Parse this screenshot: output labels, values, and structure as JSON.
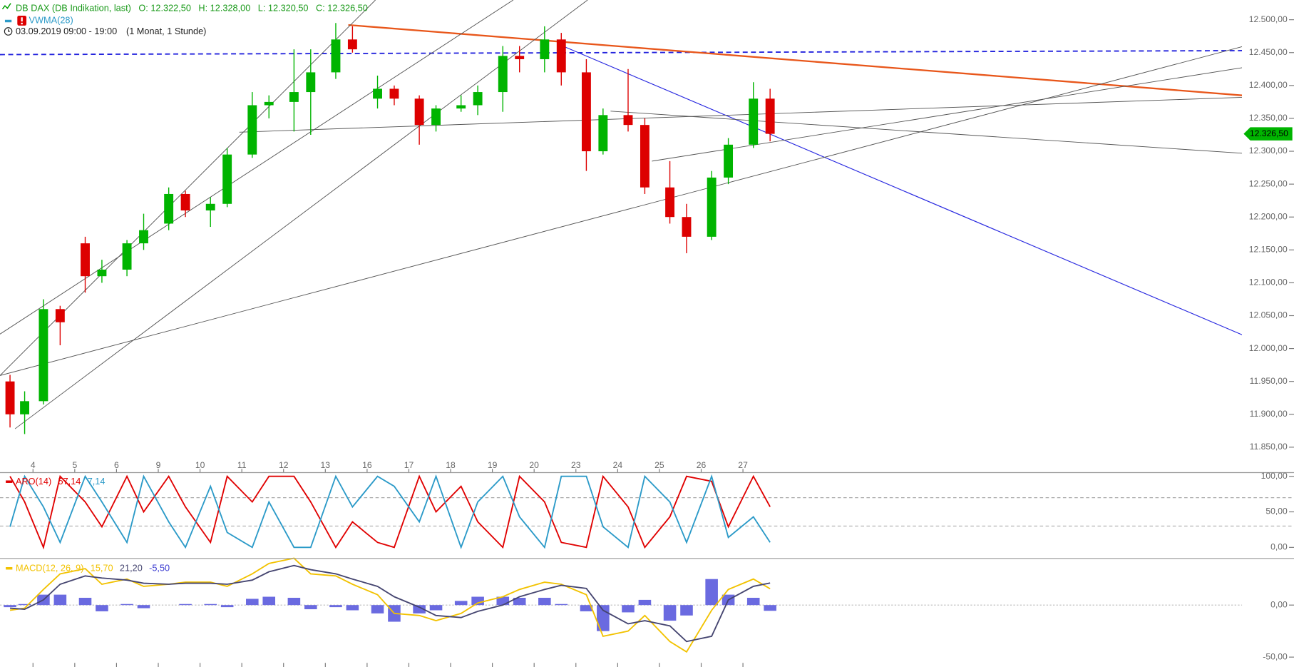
{
  "chart_data": [
    {
      "type": "candlestick",
      "title": "DB DAX (DB Indikation, last)",
      "ohlc_labels": [
        "O: 12.322,50",
        "H: 12.328,00",
        "L: 12.320,50",
        "C: 12.326,50"
      ],
      "indicator": "VWMA(28)",
      "period": "03.09.2019 09:00 - 19:00",
      "interval": "(1 Monat, 1 Stunde)",
      "last_price": {
        "value": 12326.5,
        "label": "12.326,50"
      },
      "up_color": "#00b400",
      "down_color": "#dd0000",
      "x": [
        -0.55,
        -0.2,
        0.25,
        0.65,
        1.25,
        1.65,
        2.25,
        2.65,
        3.25,
        3.65,
        4.25,
        4.65,
        5.25,
        5.65,
        6.25,
        6.65,
        7.25,
        7.65,
        8.25,
        8.65,
        9.25,
        9.65,
        10.25,
        10.65,
        11.25,
        11.65,
        12.25,
        12.65,
        13.25,
        13.65,
        14.25,
        14.65,
        15.25,
        15.65,
        16.25,
        16.65,
        17.25,
        17.65
      ],
      "open": [
        11950,
        11900,
        11920,
        12060,
        12160,
        12110,
        12120,
        12160,
        12190,
        12235,
        12210,
        12220,
        12295,
        12370,
        12375,
        12390,
        12420,
        12470,
        12380,
        12395,
        12380,
        12340,
        12365,
        12370,
        12390,
        12445,
        12440,
        12470,
        12420,
        12300,
        12355,
        12340,
        12245,
        12200,
        12170,
        12260,
        12310,
        12380
      ],
      "high": [
        11960,
        11935,
        12075,
        12065,
        12170,
        12135,
        12165,
        12205,
        12245,
        12240,
        12230,
        12305,
        12390,
        12385,
        12455,
        12455,
        12495,
        12490,
        12415,
        12400,
        12385,
        12370,
        12385,
        12400,
        12460,
        12460,
        12490,
        12480,
        12440,
        12365,
        12425,
        12350,
        12285,
        12220,
        12270,
        12320,
        12405,
        12395
      ],
      "low": [
        11880,
        11870,
        11915,
        12005,
        12085,
        12100,
        12110,
        12150,
        12180,
        12200,
        12185,
        12215,
        12290,
        12350,
        12330,
        12325,
        12410,
        12450,
        12365,
        12370,
        12310,
        12330,
        12360,
        12355,
        12360,
        12420,
        12420,
        12400,
        12270,
        12295,
        12330,
        12235,
        12190,
        12145,
        12165,
        12250,
        12305,
        12315
      ],
      "close": [
        11900,
        11920,
        12060,
        12040,
        12110,
        12120,
        12160,
        12180,
        12235,
        12210,
        12220,
        12295,
        12370,
        12375,
        12390,
        12420,
        12470,
        12455,
        12395,
        12380,
        12340,
        12365,
        12370,
        12390,
        12445,
        12440,
        12470,
        12420,
        12300,
        12355,
        12340,
        12245,
        12200,
        12170,
        12260,
        12310,
        12380,
        12326.5
      ],
      "xlim": [
        -0.79,
        28.95
      ],
      "xticks": [
        {
          "value": 0,
          "label": "4"
        },
        {
          "value": 1,
          "label": "5"
        },
        {
          "value": 2,
          "label": "6"
        },
        {
          "value": 3,
          "label": "9"
        },
        {
          "value": 4,
          "label": "10"
        },
        {
          "value": 5,
          "label": "11"
        },
        {
          "value": 6,
          "label": "12"
        },
        {
          "value": 7,
          "label": "13"
        },
        {
          "value": 8,
          "label": "16"
        },
        {
          "value": 9,
          "label": "17"
        },
        {
          "value": 10,
          "label": "18"
        },
        {
          "value": 11,
          "label": "19"
        },
        {
          "value": 12,
          "label": "20"
        },
        {
          "value": 13,
          "label": "23"
        },
        {
          "value": 14,
          "label": "24"
        },
        {
          "value": 15,
          "label": "25"
        },
        {
          "value": 16,
          "label": "26"
        },
        {
          "value": 17,
          "label": "27"
        }
      ],
      "ylim": [
        11812,
        12530
      ],
      "yticks": [
        {
          "value": 12500,
          "label": "12.500,00"
        },
        {
          "value": 12450,
          "label": "12.450,00"
        },
        {
          "value": 12400,
          "label": "12.400,00"
        },
        {
          "value": 12350,
          "label": "12.350,00"
        },
        {
          "value": 12300,
          "label": "12.300,00"
        },
        {
          "value": 12250,
          "label": "12.250,00"
        },
        {
          "value": 12200,
          "label": "12.200,00"
        },
        {
          "value": 12150,
          "label": "12.150,00"
        },
        {
          "value": 12100,
          "label": "12.100,00"
        },
        {
          "value": 12050,
          "label": "12.050,00"
        },
        {
          "value": 12000,
          "label": "12.000,00"
        },
        {
          "value": 11950,
          "label": "11.950,00"
        },
        {
          "value": 11900,
          "label": "11.900,00"
        },
        {
          "value": 11850,
          "label": "11.850,00"
        }
      ],
      "trendlines": [
        {
          "color": "#2222dd",
          "dash": true,
          "width": 1.6,
          "x": [
            -0.79,
            28.95
          ],
          "y": [
            12447,
            12453
          ]
        },
        {
          "color": "#e8561a",
          "dash": false,
          "width": 2,
          "x": [
            7.55,
            28.95
          ],
          "y": [
            12492,
            12385
          ]
        },
        {
          "color": "#2a2ae0",
          "dash": false,
          "width": 1,
          "x": [
            12.65,
            28.95
          ],
          "y": [
            12461,
            12021
          ]
        },
        {
          "color": "#555555",
          "dash": false,
          "width": 0.8,
          "x": [
            -0.79,
            28.95
          ],
          "y": [
            11959,
            12459
          ]
        },
        {
          "color": "#555555",
          "dash": false,
          "width": 0.8,
          "x": [
            -0.79,
            11.5
          ],
          "y": [
            12022,
            12530
          ]
        },
        {
          "color": "#555555",
          "dash": false,
          "width": 0.8,
          "x": [
            -0.79,
            8.2
          ],
          "y": [
            11959,
            12530
          ]
        },
        {
          "color": "#555555",
          "dash": false,
          "width": 0.8,
          "x": [
            -0.43,
            13.28
          ],
          "y": [
            11878,
            12530
          ]
        },
        {
          "color": "#555555",
          "dash": false,
          "width": 0.8,
          "x": [
            4.94,
            28.95
          ],
          "y": [
            12329,
            12382
          ]
        },
        {
          "color": "#555555",
          "dash": false,
          "width": 0.8,
          "x": [
            13.83,
            28.95
          ],
          "y": [
            12361,
            12297
          ]
        },
        {
          "color": "#555555",
          "dash": false,
          "width": 0.8,
          "x": [
            14.82,
            28.95
          ],
          "y": [
            12285,
            12427
          ]
        }
      ]
    },
    {
      "type": "line",
      "title": "ARO(14)",
      "series": [
        {
          "name": "Aroon Up",
          "last_label": "57,14",
          "color": "#e00000",
          "values": [
            100,
            64,
            0,
            100,
            64,
            29,
            100,
            50,
            100,
            57,
            7,
            100,
            64,
            100,
            100,
            64,
            0,
            36,
            7,
            0,
            100,
            50,
            86,
            36,
            0,
            100,
            64,
            7,
            0,
            100,
            57,
            0,
            43,
            100,
            93,
            29,
            100,
            57.14
          ]
        },
        {
          "name": "Aroon Down",
          "last_label": "7,14",
          "color": "#2b9ac8",
          "values": [
            29,
            100,
            57,
            7,
            100,
            64,
            7,
            100,
            36,
            0,
            86,
            21,
            0,
            64,
            0,
            0,
            100,
            57,
            100,
            86,
            36,
            100,
            0,
            64,
            100,
            43,
            0,
            100,
            100,
            29,
            0,
            100,
            64,
            7,
            100,
            14,
            43,
            7.14
          ]
        }
      ],
      "reference_lines": [
        70,
        30
      ],
      "ylim": [
        -15,
        104.7
      ],
      "yticks": [
        {
          "value": 100,
          "label": "100,00"
        },
        {
          "value": 50,
          "label": "50,00"
        },
        {
          "value": 0,
          "label": "0,00"
        }
      ]
    },
    {
      "type": "macd",
      "title": "MACD(12, 26, 9)",
      "series": [
        {
          "name": "MACD",
          "last_label": "15,70",
          "color": "#f2c200",
          "style": "line",
          "values": [
            -5,
            -3,
            15,
            30,
            35,
            20,
            25,
            18,
            20,
            22,
            22,
            18,
            30,
            40,
            45,
            30,
            28,
            20,
            10,
            -8,
            -10,
            -15,
            -8,
            2,
            8,
            15,
            22,
            20,
            10,
            -30,
            -25,
            -10,
            -35,
            -45,
            -5,
            15,
            25,
            15.7
          ]
        },
        {
          "name": "Signal",
          "last_label": "21,20",
          "color": "#454570",
          "style": "line",
          "values": [
            -3,
            -4,
            5,
            20,
            28,
            26,
            24,
            21,
            20,
            21,
            21,
            20,
            24,
            32,
            38,
            34,
            30,
            25,
            18,
            8,
            -2,
            -10,
            -12,
            -6,
            0,
            8,
            15,
            19,
            16,
            -5,
            -18,
            -15,
            -20,
            -35,
            -30,
            5,
            18,
            21.2
          ]
        },
        {
          "name": "Histogram",
          "last_label": "-5,50",
          "color": "#6a6ae0",
          "style": "bar",
          "values": [
            -2,
            1,
            10,
            10,
            7,
            -6,
            1,
            -3,
            0,
            1,
            1,
            -2,
            6,
            8,
            7,
            -4,
            -2,
            -5,
            -8,
            -16,
            -8,
            -5,
            4,
            8,
            8,
            7,
            7,
            1,
            -6,
            -25,
            -7,
            5,
            -15,
            -10,
            25,
            10,
            7,
            -5.5
          ]
        }
      ],
      "ylim": [
        -59.5,
        44.4
      ],
      "yticks": [
        {
          "value": 0,
          "label": "0,00"
        },
        {
          "value": -50,
          "label": "-50,00"
        }
      ]
    }
  ]
}
